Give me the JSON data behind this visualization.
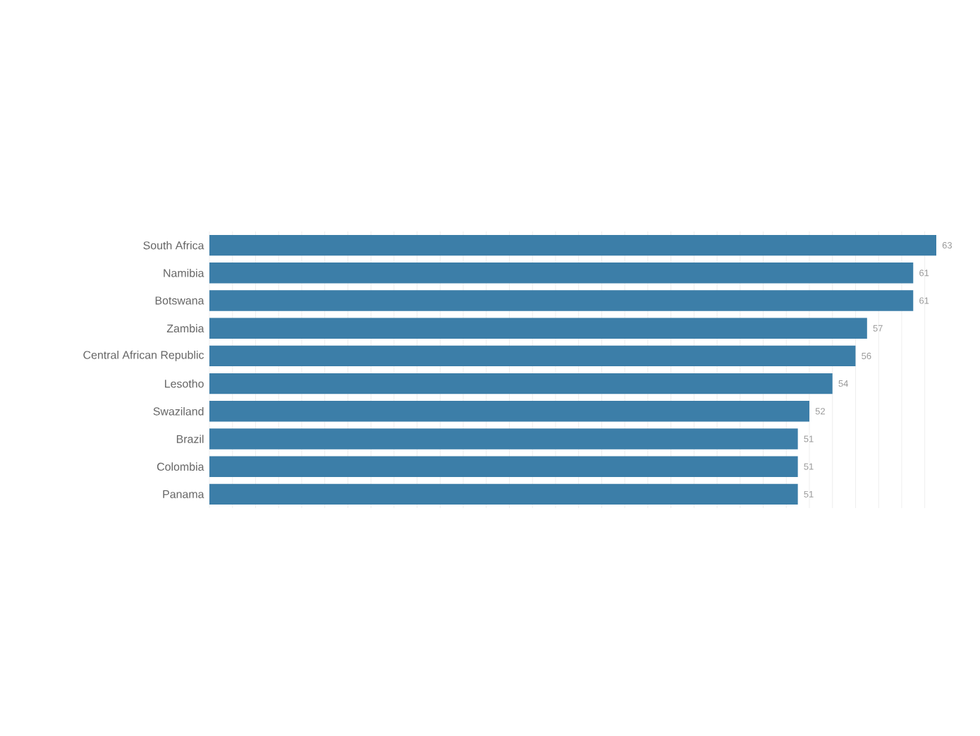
{
  "chart_data": {
    "type": "bar",
    "orientation": "horizontal",
    "categories": [
      "South Africa",
      "Namibia",
      "Botswana",
      "Zambia",
      "Central African Republic",
      "Lesotho",
      "Swaziland",
      "Brazil",
      "Colombia",
      "Panama"
    ],
    "values": [
      63,
      61,
      61,
      57,
      56,
      54,
      52,
      51,
      51,
      51
    ],
    "data_labels": true,
    "color": "#3c7ea8",
    "grid": "x",
    "tick_labels": "y"
  }
}
